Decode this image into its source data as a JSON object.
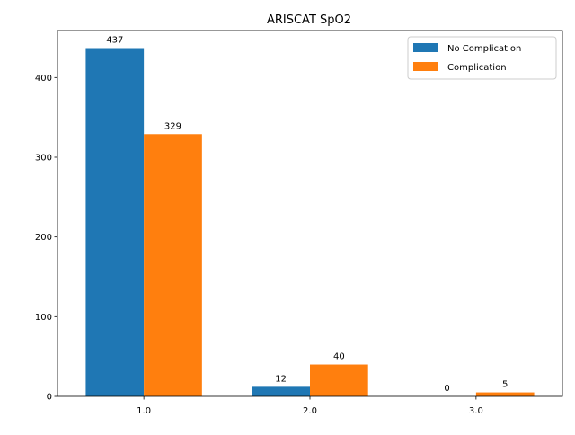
{
  "chart_data": {
    "type": "bar",
    "title": "ARISCAT SpO2",
    "xlabel": "",
    "ylabel": "",
    "categories": [
      "1.0",
      "2.0",
      "3.0"
    ],
    "series": [
      {
        "name": "No Complication",
        "values": [
          437,
          12,
          0
        ],
        "color": "#1f77b4"
      },
      {
        "name": "Complication",
        "values": [
          329,
          40,
          5
        ],
        "color": "#ff7f0e"
      }
    ],
    "ylim": [
      0,
      459
    ],
    "yticks": [
      0,
      100,
      200,
      300,
      400
    ],
    "grid": false,
    "legend_position": "top-right",
    "data_labels": true
  }
}
